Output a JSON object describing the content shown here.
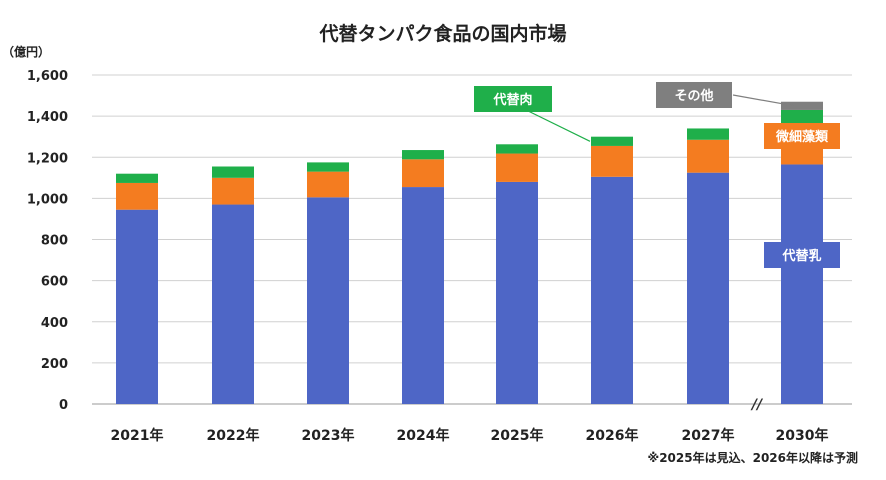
{
  "chart_data": {
    "type": "bar",
    "stacked": true,
    "title": "代替タンパク食品の国内市場",
    "unit_label": "（億円）",
    "categories": [
      "2021年",
      "2022年",
      "2023年",
      "2024年",
      "2025年",
      "2026年",
      "2027年",
      "2030年"
    ],
    "series": [
      {
        "name": "代替乳",
        "color": "#4E66C6",
        "values": [
          945,
          970,
          1005,
          1055,
          1080,
          1105,
          1125,
          1165
        ]
      },
      {
        "name": "微細藻類",
        "color": "#F47C20",
        "values": [
          130,
          130,
          125,
          135,
          138,
          150,
          160,
          175
        ]
      },
      {
        "name": "代替肉",
        "color": "#1FAF4A",
        "values": [
          45,
          55,
          45,
          45,
          45,
          45,
          55,
          90
        ]
      },
      {
        "name": "その他",
        "color": "#7F7F7F",
        "values": [
          0,
          0,
          0,
          0,
          0,
          0,
          0,
          40
        ]
      }
    ],
    "ylim": [
      0,
      1600
    ],
    "yticks": [
      "0",
      "200",
      "400",
      "600",
      "800",
      "1,000",
      "1,200",
      "1,400",
      "1,600"
    ],
    "grid": true,
    "axis_break_before": "2030年",
    "axis_break_mark": "//",
    "note": "※2025年は見込、2026年以降は予測"
  }
}
